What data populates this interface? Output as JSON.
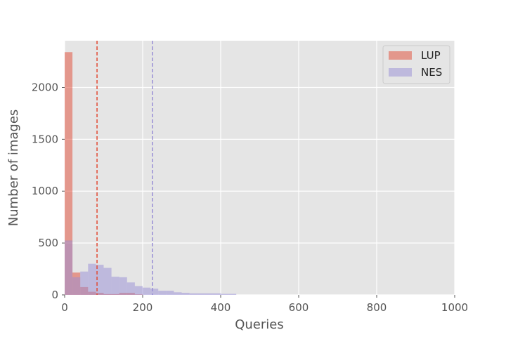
{
  "chart_data": {
    "type": "histogram",
    "xlabel": "Queries",
    "ylabel": "Number of images",
    "xlim": [
      0,
      1000
    ],
    "ylim": [
      0,
      2450
    ],
    "xticks": [
      "0",
      "200",
      "400",
      "600",
      "800",
      "1000"
    ],
    "yticks": [
      "0",
      "500",
      "1000",
      "1500",
      "2000"
    ],
    "grid": true,
    "legend_position": "top-right",
    "series": [
      {
        "name": "LUP",
        "color": "#e24a33",
        "opacity": 0.5,
        "bin_edges": [
          0,
          20,
          40,
          60,
          80,
          100,
          120,
          140,
          160,
          180,
          200
        ],
        "counts": [
          2340,
          215,
          75,
          30,
          20,
          8,
          8,
          20,
          20,
          5
        ]
      },
      {
        "name": "NES",
        "color": "#988ed5",
        "opacity": 0.5,
        "bin_edges": [
          0,
          20,
          40,
          60,
          80,
          100,
          120,
          140,
          160,
          180,
          200,
          220,
          240,
          260,
          280,
          300,
          320,
          340,
          360,
          380,
          400,
          420,
          440
        ],
        "counts": [
          525,
          170,
          225,
          300,
          290,
          260,
          175,
          170,
          120,
          85,
          70,
          60,
          40,
          40,
          25,
          20,
          15,
          15,
          15,
          15,
          10,
          10
        ]
      }
    ],
    "reference_lines": [
      {
        "series": "LUP",
        "x": 83,
        "color": "#e24a33",
        "style": "dashed"
      },
      {
        "series": "NES",
        "x": 225,
        "color": "#988ed5",
        "style": "dashed"
      }
    ]
  }
}
